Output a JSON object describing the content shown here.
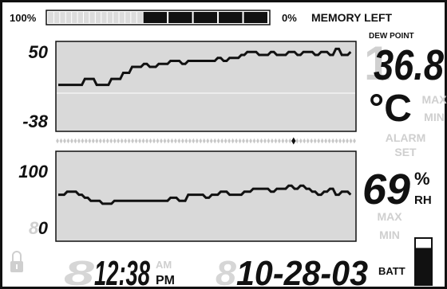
{
  "memory_bar": {
    "left_label": "100%",
    "right_label": "0%",
    "title": "MEMORY LEFT",
    "used_fraction": 0.57
  },
  "dew_point": {
    "label": "DEW POINT",
    "value": "36.8",
    "unit": "°C",
    "max_label": "MAX",
    "min_label": "MIN",
    "alarm_label": "ALARM",
    "set_label": "SET"
  },
  "temp_graph": {
    "y_max": "50",
    "y_min": "-38",
    "trace": [
      [
        0,
        14.5
      ],
      [
        8,
        14.5
      ],
      [
        9,
        12.5
      ],
      [
        12,
        12.5
      ],
      [
        13,
        14.5
      ],
      [
        17,
        14.5
      ],
      [
        18,
        12.5
      ],
      [
        21,
        12.5
      ],
      [
        22,
        10.5
      ],
      [
        24,
        10.5
      ],
      [
        25,
        8.5
      ],
      [
        28,
        8.5
      ],
      [
        29,
        7.5
      ],
      [
        30,
        7.5
      ],
      [
        31,
        8.5
      ],
      [
        33,
        8.5
      ],
      [
        34,
        7.5
      ],
      [
        37,
        7.5
      ],
      [
        38,
        6.5
      ],
      [
        41,
        6.5
      ],
      [
        42,
        7.5
      ],
      [
        43,
        7.5
      ],
      [
        44,
        6.5
      ],
      [
        53,
        6.5
      ],
      [
        54,
        5.5
      ],
      [
        55,
        5.5
      ],
      [
        56,
        6.5
      ],
      [
        57,
        6.5
      ],
      [
        58,
        5.5
      ],
      [
        61,
        5.5
      ],
      [
        62,
        4.5
      ],
      [
        63,
        4.5
      ],
      [
        64,
        3.5
      ],
      [
        67,
        3.5
      ],
      [
        68,
        4.5
      ],
      [
        71,
        4.5
      ],
      [
        72,
        3.5
      ],
      [
        73,
        3.5
      ],
      [
        74,
        4.5
      ],
      [
        77,
        4.5
      ],
      [
        78,
        3.5
      ],
      [
        80,
        3.5
      ],
      [
        81,
        4.5
      ],
      [
        82,
        4.5
      ],
      [
        83,
        3.5
      ],
      [
        86,
        3.5
      ],
      [
        87,
        4.5
      ],
      [
        88,
        4.5
      ],
      [
        89,
        3.5
      ],
      [
        91,
        3.5
      ],
      [
        92,
        4.5
      ],
      [
        93,
        4.5
      ],
      [
        94,
        2.5
      ],
      [
        95,
        2.5
      ],
      [
        96,
        4.5
      ],
      [
        98,
        4.5
      ],
      [
        99,
        3.5
      ]
    ]
  },
  "humidity_graph": {
    "y_max": "100",
    "y_min": "0",
    "trace": [
      [
        0,
        14.5
      ],
      [
        2,
        14.5
      ],
      [
        3,
        13.5
      ],
      [
        6,
        13.5
      ],
      [
        7,
        14.5
      ],
      [
        8,
        14.5
      ],
      [
        9,
        15.5
      ],
      [
        10,
        15.5
      ],
      [
        11,
        16.5
      ],
      [
        14,
        16.5
      ],
      [
        15,
        17.5
      ],
      [
        18,
        17.5
      ],
      [
        19,
        16.5
      ],
      [
        37,
        16.5
      ],
      [
        38,
        15.5
      ],
      [
        40,
        15.5
      ],
      [
        41,
        16.5
      ],
      [
        43,
        16.5
      ],
      [
        44,
        14.5
      ],
      [
        49,
        14.5
      ],
      [
        50,
        15.5
      ],
      [
        51,
        15.5
      ],
      [
        52,
        14.5
      ],
      [
        54,
        14.5
      ],
      [
        55,
        13.5
      ],
      [
        57,
        13.5
      ],
      [
        58,
        14.5
      ],
      [
        62,
        14.5
      ],
      [
        63,
        13.5
      ],
      [
        65,
        13.5
      ],
      [
        66,
        12.5
      ],
      [
        71,
        12.5
      ],
      [
        72,
        13.5
      ],
      [
        73,
        13.5
      ],
      [
        74,
        12.5
      ],
      [
        77,
        12.5
      ],
      [
        78,
        11.5
      ],
      [
        79,
        11.5
      ],
      [
        80,
        12.5
      ],
      [
        81,
        12.5
      ],
      [
        82,
        11.5
      ],
      [
        83,
        11.5
      ],
      [
        84,
        12.5
      ],
      [
        85,
        12.5
      ],
      [
        86,
        13.5
      ],
      [
        87,
        13.5
      ],
      [
        88,
        14.5
      ],
      [
        89,
        14.5
      ],
      [
        90,
        13.5
      ],
      [
        91,
        13.5
      ],
      [
        92,
        12.5
      ],
      [
        93,
        12.5
      ],
      [
        94,
        14.5
      ],
      [
        95,
        14.5
      ],
      [
        96,
        13.5
      ],
      [
        98,
        13.5
      ],
      [
        99,
        14.5
      ]
    ]
  },
  "cursor": {
    "position": 0.79
  },
  "humidity": {
    "value": "69",
    "percent": "%",
    "unit": "RH",
    "max_label": "MAX",
    "min_label": "MIN"
  },
  "clock": {
    "time": "12:38",
    "am": "AM",
    "pm": "PM"
  },
  "date": {
    "value": "10-28-03"
  },
  "battery": {
    "label": "BATT",
    "level": 0.8
  },
  "colors": {
    "lcd_bg": "#ffffff",
    "active": "#111111",
    "ghost": "#d0d0d0",
    "graph_bg": "#d9d9d9",
    "ghost_bar": "#dcdcdc"
  }
}
